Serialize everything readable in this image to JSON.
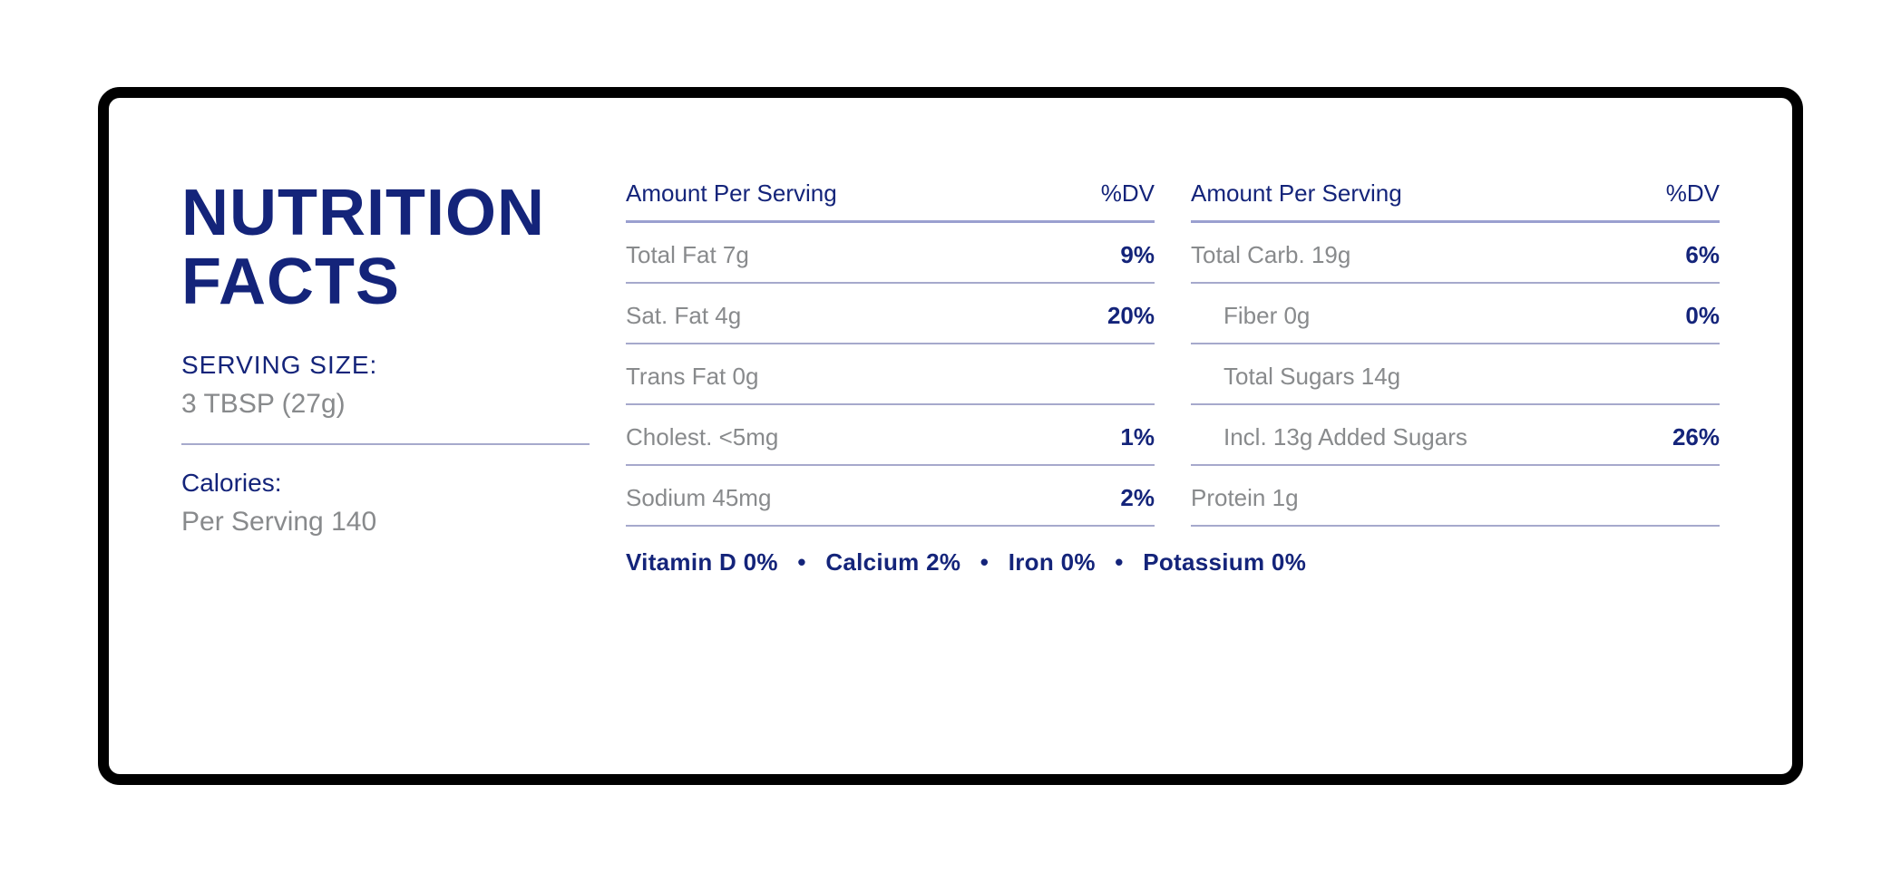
{
  "colors": {
    "primary": "#14247a",
    "muted": "#888a8c",
    "rule": "#a6a9cc",
    "border": "#000000",
    "background": "#ffffff"
  },
  "title": "NUTRITION FACTS",
  "serving": {
    "label": "SERVING SIZE:",
    "value": "3 TBSP (27g)"
  },
  "calories": {
    "label": "Calories:",
    "value": "Per Serving 140"
  },
  "header": {
    "amount": "Amount Per Serving",
    "dv": "%DV"
  },
  "col1": [
    {
      "name": "Total Fat 7g",
      "dv": "9%",
      "indent": 0
    },
    {
      "name": "Sat. Fat 4g",
      "dv": "20%",
      "indent": 0
    },
    {
      "name": "Trans Fat 0g",
      "dv": "",
      "indent": 0
    },
    {
      "name": "Cholest. <5mg",
      "dv": "1%",
      "indent": 0
    },
    {
      "name": "Sodium 45mg",
      "dv": "2%",
      "indent": 0
    }
  ],
  "col2": [
    {
      "name": "Total Carb. 19g",
      "dv": "6%",
      "indent": 0
    },
    {
      "name": "Fiber 0g",
      "dv": "0%",
      "indent": 1
    },
    {
      "name": "Total Sugars 14g",
      "dv": "",
      "indent": 1
    },
    {
      "name": "Incl. 13g Added Sugars",
      "dv": "26%",
      "indent": 1
    },
    {
      "name": "Protein 1g",
      "dv": "",
      "indent": 0
    }
  ],
  "vitamins": [
    "Vitamin D 0%",
    "Calcium 2%",
    "Iron 0%",
    "Potassium 0%"
  ]
}
